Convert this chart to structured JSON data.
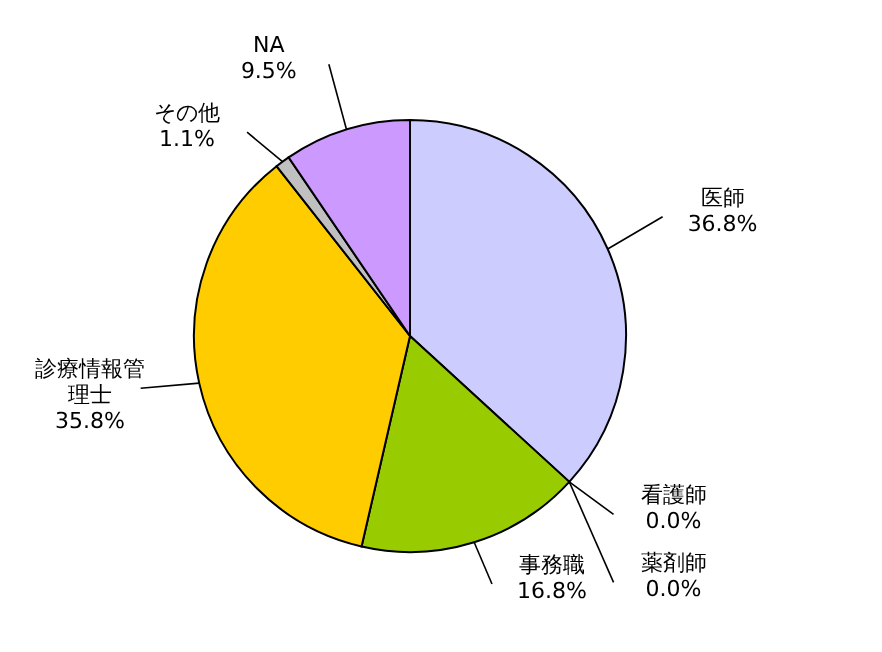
{
  "chart_data": {
    "type": "pie",
    "categories": [
      "医師",
      "看護師",
      "薬剤師",
      "事務職",
      "診療情報管理士",
      "その他",
      "NA"
    ],
    "values": [
      36.8,
      0.0,
      0.0,
      16.8,
      35.8,
      1.1,
      9.5
    ],
    "value_labels": [
      "36.8%",
      "0.0%",
      "0.0%",
      "16.8%",
      "35.8%",
      "1.1%",
      "9.5%"
    ],
    "colors": [
      "#ccccff",
      null,
      null,
      "#99cc00",
      "#ffcc00",
      "#c0c0c0",
      "#cc99ff"
    ]
  }
}
